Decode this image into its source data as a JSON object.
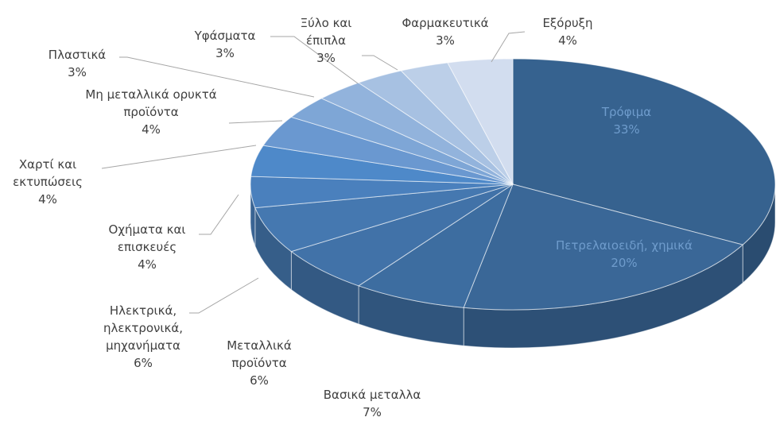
{
  "chart_data": {
    "type": "pie3d",
    "categories": [
      "Τρόφιμα",
      "Πετρελαιοειδή, χημικά",
      "Βασικά μεταλλα",
      "Μεταλλικά προϊόντα",
      "Ηλεκτρικά, ηλεκτρονικά, μηχανήματα",
      "Οχήματα και επισκευές",
      "Χαρτί και εκτυπώσεις",
      "Μη μεταλλικά ορυκτά προϊόντα",
      "Πλαστικά",
      "Υφάσματα",
      "Ξύλο και έπιπλα",
      "Φαρμακευτικά",
      "Εξόρυξη"
    ],
    "values": [
      33,
      20,
      7,
      6,
      6,
      4,
      4,
      4,
      3,
      3,
      3,
      3,
      4
    ],
    "value_labels": [
      "33%",
      "20%",
      "7%",
      "6%",
      "6%",
      "4%",
      "4%",
      "4%",
      "3%",
      "3%",
      "3%",
      "3%",
      "4%"
    ],
    "colors": [
      "#36628f",
      "#3a6797",
      "#3d6da0",
      "#4172a8",
      "#4578b0",
      "#4a80bd",
      "#4e89c9",
      "#6a98d0",
      "#7ea6d6",
      "#92b3dc",
      "#a7c1e2",
      "#bccfe8",
      "#d2ddef"
    ]
  }
}
